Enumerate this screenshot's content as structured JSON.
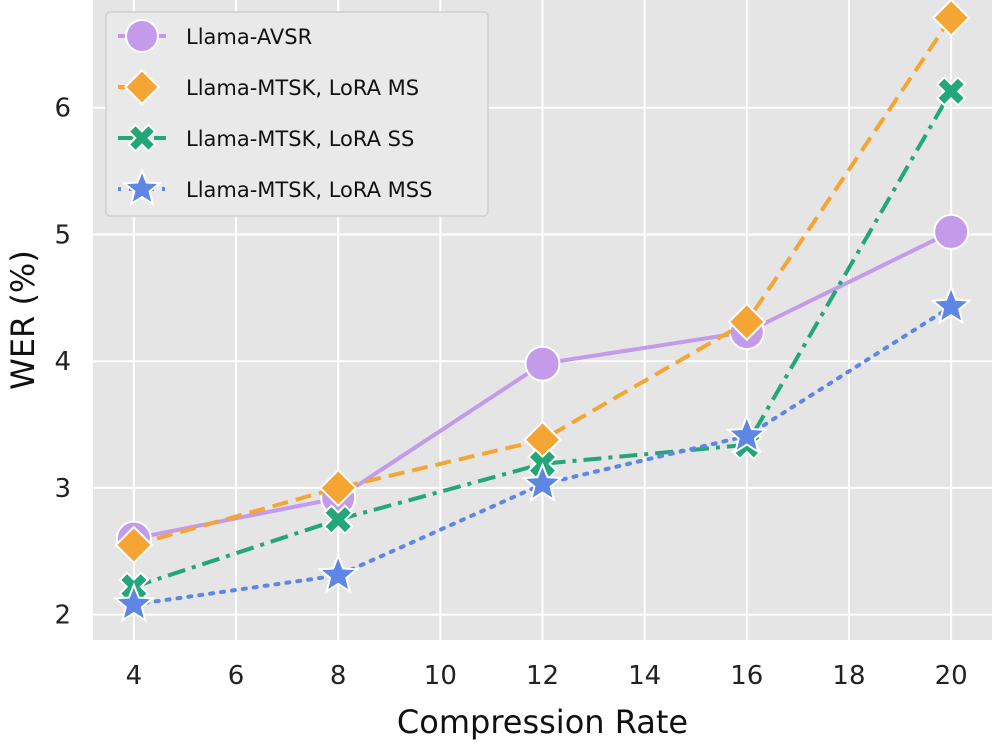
{
  "chart_data": {
    "type": "line",
    "title": "",
    "xlabel": "Compression Rate",
    "ylabel": "WER (%)",
    "xlim": [
      3.2,
      20.8
    ],
    "ylim": [
      1.8,
      6.85
    ],
    "xticks": [
      4,
      6,
      8,
      10,
      12,
      14,
      16,
      18,
      20
    ],
    "yticks": [
      2,
      3,
      4,
      5,
      6
    ],
    "grid": true,
    "legend_position": "top-left",
    "x": [
      4,
      8,
      12,
      16,
      20
    ],
    "series": [
      {
        "name": "Llama-AVSR",
        "values": [
          2.6,
          2.92,
          3.98,
          4.23,
          5.02
        ],
        "color": "#c39bea",
        "marker": "circle",
        "dash": "solid"
      },
      {
        "name": "Llama-MTSK, LoRA MS",
        "values": [
          2.55,
          3.0,
          3.38,
          4.31,
          6.71
        ],
        "color": "#f5a533",
        "marker": "diamond",
        "dash": "dashed"
      },
      {
        "name": "Llama-MTSK, LoRA SS",
        "values": [
          2.22,
          2.75,
          3.19,
          3.34,
          6.13
        ],
        "color": "#23a678",
        "marker": "x",
        "dash": "dashdot"
      },
      {
        "name": "Llama-MTSK, LoRA MSS",
        "values": [
          2.08,
          2.31,
          3.03,
          3.41,
          4.43
        ],
        "color": "#5e86e5",
        "marker": "star",
        "dash": "dotted"
      }
    ]
  }
}
